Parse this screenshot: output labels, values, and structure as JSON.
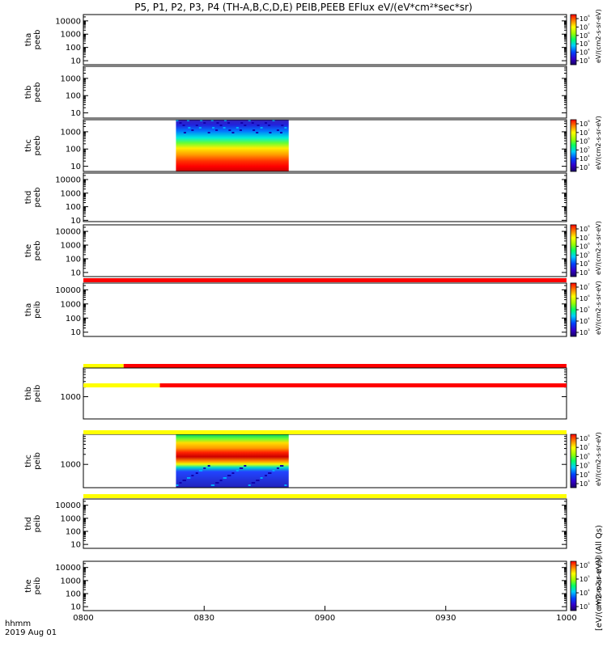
{
  "title": "P5, P1, P2, P3, P4 (TH-A,B,C,D,E) PEIB,PEEB EFlux eV/(eV*cm²*sec*sr)",
  "time_axis": {
    "ticks": [
      "0800",
      "0830",
      "0900",
      "0930",
      "1000"
    ],
    "label_line1": "hhmm",
    "label_line2": "2019 Aug 01"
  },
  "colorbar_label": "[eV/(cm2-s-sr-eV)] (All Qs)",
  "colors": {
    "flag_red": "#ff0000",
    "flag_yellow": "#ffff00",
    "frame": "#000000"
  },
  "chart_data": [
    {
      "type": "heatmap",
      "probe": "tha",
      "name_line1": "tha",
      "name_line2": "peeb",
      "yscale": "log",
      "ylim": [
        5,
        30000
      ],
      "yticks": [
        "10",
        "100",
        "1000",
        "10000"
      ],
      "colorbar": {
        "ticks": [
          "10³",
          "10⁴",
          "10⁵",
          "10⁶",
          "10⁷",
          "10⁸"
        ],
        "label": "eV/(cm2-s-sr-eV)"
      },
      "data_interval": null,
      "flag_bar": null
    },
    {
      "type": "heatmap",
      "probe": "thb",
      "name_line1": "thb",
      "name_line2": "peeb",
      "yscale": "log",
      "ylim": [
        5,
        5000
      ],
      "yticks": [
        "10",
        "100",
        "1000"
      ],
      "colorbar": null,
      "data_interval": null,
      "flag_bar": null
    },
    {
      "type": "heatmap",
      "probe": "thc",
      "name_line1": "thc",
      "name_line2": "peeb",
      "yscale": "log",
      "ylim": [
        5,
        5000
      ],
      "yticks": [
        "10",
        "100",
        "1000"
      ],
      "colorbar": {
        "ticks": [
          "10³",
          "10⁴",
          "10⁵",
          "10⁶",
          "10⁷",
          "10⁸"
        ],
        "label": "eV/(cm2-s-sr-eV)"
      },
      "data_interval": [
        "0823",
        "0851"
      ],
      "flag_bar": null
    },
    {
      "type": "heatmap",
      "probe": "thd",
      "name_line1": "thd",
      "name_line2": "peeb",
      "yscale": "log",
      "ylim": [
        8,
        30000
      ],
      "yticks": [
        "10",
        "100",
        "1000",
        "10000"
      ],
      "colorbar": null,
      "data_interval": null,
      "flag_bar": null
    },
    {
      "type": "heatmap",
      "probe": "the",
      "name_line1": "the",
      "name_line2": "peeb",
      "yscale": "log",
      "ylim": [
        5,
        30000
      ],
      "yticks": [
        "10",
        "100",
        "1000",
        "10000"
      ],
      "colorbar": {
        "ticks": [
          "10³",
          "10⁴",
          "10⁵",
          "10⁶",
          "10⁷",
          "10⁸"
        ],
        "label": "eV/(cm2-s-sr-eV)"
      },
      "data_interval": null,
      "flag_bar": [
        {
          "from": "0800",
          "to": "1000",
          "color": "red"
        }
      ]
    },
    {
      "type": "heatmap",
      "probe": "tha",
      "name_line1": "tha",
      "name_line2": "peib",
      "yscale": "log",
      "ylim": [
        5,
        30000
      ],
      "yticks": [
        "10",
        "100",
        "1000",
        "10000"
      ],
      "colorbar": {
        "ticks": [
          "10³",
          "10⁴",
          "10⁵",
          "10⁶",
          "10⁷"
        ],
        "label": "eV/(cm2-s-sr-eV)"
      },
      "data_interval": null,
      "flag_bar": [
        {
          "from": "0800",
          "to": "0810",
          "color": "yellow"
        },
        {
          "from": "0810",
          "to": "1000",
          "color": "red"
        }
      ]
    },
    {
      "type": "heatmap",
      "probe": "thb",
      "name_line1": "thb",
      "name_line2": "peib",
      "yscale": "log",
      "ylim": [
        200,
        8000
      ],
      "yticks": [
        "1000"
      ],
      "colorbar": null,
      "data_interval": null,
      "flag_bar": [
        {
          "from": "0800",
          "to": "0819",
          "color": "yellow"
        },
        {
          "from": "0819",
          "to": "1000",
          "color": "red"
        }
      ]
    },
    {
      "type": "heatmap",
      "probe": "thc",
      "name_line1": "thc",
      "name_line2": "peib",
      "yscale": "log",
      "ylim": [
        200,
        8000
      ],
      "yticks": [
        "1000"
      ],
      "colorbar": {
        "ticks": [
          "10³",
          "10⁴",
          "10⁵",
          "10⁶",
          "10⁷",
          "10⁸"
        ],
        "label": "eV/(cm2-s-sr-eV)"
      },
      "data_interval": [
        "0823",
        "0851"
      ],
      "flag_bar": [
        {
          "from": "0800",
          "to": "1000",
          "color": "yellow"
        }
      ]
    },
    {
      "type": "heatmap",
      "probe": "thd",
      "name_line1": "thd",
      "name_line2": "peib",
      "yscale": "log",
      "ylim": [
        5,
        30000
      ],
      "yticks": [
        "10",
        "100",
        "1000",
        "10000"
      ],
      "colorbar": null,
      "data_interval": null,
      "flag_bar": [
        {
          "from": "0800",
          "to": "1000",
          "color": "yellow"
        }
      ]
    },
    {
      "type": "heatmap",
      "probe": "the",
      "name_line1": "the",
      "name_line2": "peib",
      "yscale": "log",
      "ylim": [
        5,
        30000
      ],
      "yticks": [
        "10",
        "100",
        "1000",
        "10000"
      ],
      "colorbar": {
        "ticks": [
          "10³",
          "10⁴",
          "10⁵",
          "10⁶"
        ],
        "label": "eV/(cm2-s-sr-eV)"
      },
      "data_interval": null,
      "flag_bar": null
    }
  ]
}
